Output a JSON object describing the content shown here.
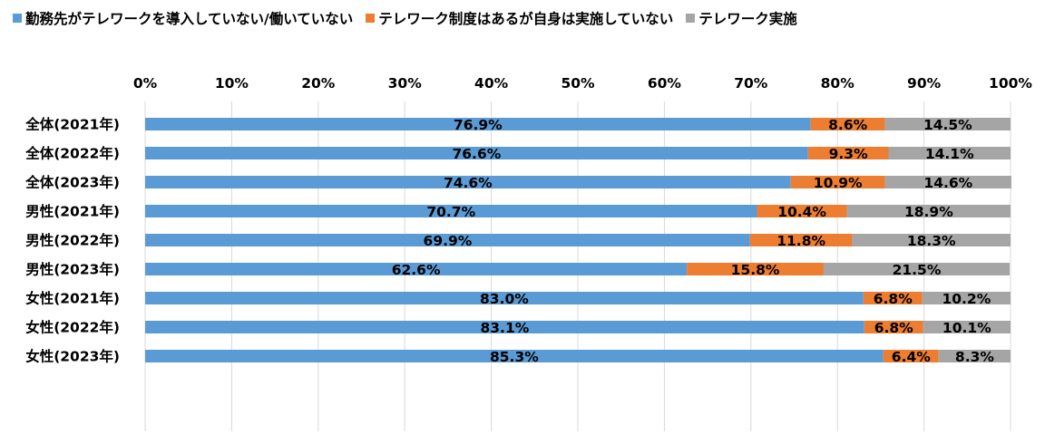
{
  "chart_data": {
    "type": "bar",
    "orientation": "horizontal",
    "stacked": "percent",
    "categories": [
      "全体(2021年)",
      "全体(2022年)",
      "全体(2023年)",
      "男性(2021年)",
      "男性(2022年)",
      "男性(2023年)",
      "女性(2021年)",
      "女性(2022年)",
      "女性(2023年)"
    ],
    "groups": [
      [
        0,
        1,
        2
      ],
      [
        3,
        4,
        5
      ],
      [
        6,
        7,
        8
      ]
    ],
    "series": [
      {
        "name": "勤務先がテレワークを導入していない/働いていない",
        "color": "#5b9bd5",
        "values": [
          76.9,
          76.6,
          74.6,
          70.7,
          69.9,
          62.6,
          83.0,
          83.1,
          85.3
        ],
        "labels": [
          "76.9%",
          "76.6%",
          "74.6%",
          "70.7%",
          "69.9%",
          "62.6%",
          "83.0%",
          "83.1%",
          "85.3%"
        ]
      },
      {
        "name": "テレワーク制度はあるが自身は実施していない",
        "color": "#ed7d31",
        "values": [
          8.6,
          9.3,
          10.9,
          10.4,
          11.8,
          15.8,
          6.8,
          6.8,
          6.4
        ],
        "labels": [
          "8.6%",
          "9.3%",
          "10.9%",
          "10.4%",
          "11.8%",
          "15.8%",
          "6.8%",
          "6.8%",
          "6.4%"
        ]
      },
      {
        "name": "テレワーク実施",
        "color": "#a5a5a5",
        "values": [
          14.5,
          14.1,
          14.6,
          18.9,
          18.3,
          21.5,
          10.2,
          10.1,
          8.3
        ],
        "labels": [
          "14.5%",
          "14.1%",
          "14.6%",
          "18.9%",
          "18.3%",
          "21.5%",
          "10.2%",
          "10.1%",
          "8.3%"
        ]
      }
    ],
    "xlim": [
      0,
      100
    ],
    "xticks": [
      "0%",
      "10%",
      "20%",
      "30%",
      "40%",
      "50%",
      "60%",
      "70%",
      "80%",
      "90%",
      "100%"
    ],
    "x_axis_position": "top",
    "grid": true,
    "legend_position": "top"
  }
}
